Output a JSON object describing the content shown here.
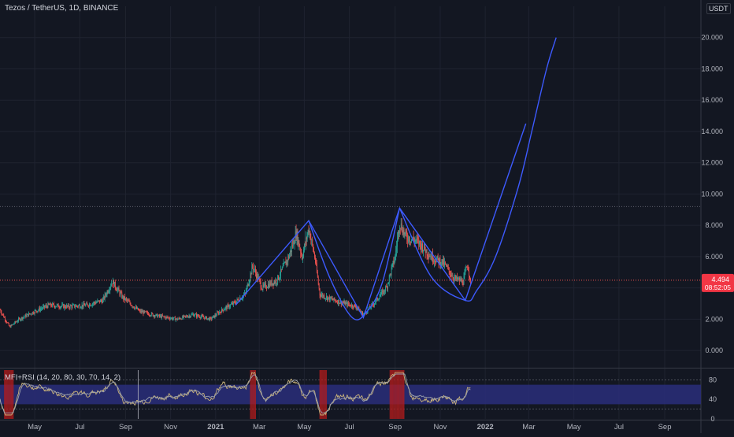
{
  "header": {
    "title": "Tezos / TetherUS, 1D, BINANCE",
    "currency": "USDT"
  },
  "indicator": {
    "label": "MFI+RSI (14, 20, 80, 30, 70, 14, 2)",
    "ticks": [
      "80",
      "40",
      "0"
    ]
  },
  "price_tag": {
    "value": "4.494",
    "countdown": "08:52:05",
    "color": "#f23645"
  },
  "colors": {
    "background": "#131722",
    "grid": "#1f2330",
    "up": "#26a69a",
    "down": "#ef5350",
    "pattern": "#3d5afe",
    "band": "#2a2e7a"
  },
  "chart_data": [
    {
      "type": "candlestick",
      "x_ticks": [
        "May",
        "Jul",
        "Sep",
        "Nov",
        "2021",
        "Mar",
        "May",
        "Jul",
        "Sep",
        "Nov",
        "2022",
        "Mar",
        "May",
        "Jul",
        "Sep"
      ],
      "y_ticks": [
        "20.000",
        "18.000",
        "16.000",
        "14.000",
        "12.000",
        "10.000",
        "8.000",
        "6.000",
        "4.000",
        "2.000",
        "0.000"
      ],
      "ylim": [
        -1.0,
        22.0
      ],
      "date_range": [
        "2020-03-15",
        "2022-10-20"
      ],
      "last_price": 4.494,
      "price_path": [
        [
          "2020-03-15",
          2.6
        ],
        [
          "2020-03-28",
          1.5
        ],
        [
          "2020-04-10",
          2.0
        ],
        [
          "2020-05-01",
          2.5
        ],
        [
          "2020-05-20",
          2.9
        ],
        [
          "2020-06-15",
          2.8
        ],
        [
          "2020-07-10",
          2.9
        ],
        [
          "2020-08-01",
          3.2
        ],
        [
          "2020-08-14",
          4.4
        ],
        [
          "2020-08-28",
          3.4
        ],
        [
          "2020-09-20",
          2.5
        ],
        [
          "2020-10-15",
          2.2
        ],
        [
          "2020-11-10",
          2.0
        ],
        [
          "2020-12-01",
          2.3
        ],
        [
          "2020-12-25",
          2.0
        ],
        [
          "2021-01-10",
          2.6
        ],
        [
          "2021-01-25",
          3.0
        ],
        [
          "2021-02-10",
          3.6
        ],
        [
          "2021-02-20",
          5.4
        ],
        [
          "2021-03-05",
          4.0
        ],
        [
          "2021-03-25",
          4.5
        ],
        [
          "2021-04-10",
          6.0
        ],
        [
          "2021-04-20",
          7.5
        ],
        [
          "2021-04-28",
          6.0
        ],
        [
          "2021-05-07",
          7.8
        ],
        [
          "2021-05-15",
          6.0
        ],
        [
          "2021-05-22",
          3.6
        ],
        [
          "2021-06-05",
          3.3
        ],
        [
          "2021-06-25",
          3.0
        ],
        [
          "2021-07-10",
          2.8
        ],
        [
          "2021-07-20",
          2.3
        ],
        [
          "2021-08-01",
          2.9
        ],
        [
          "2021-08-20",
          4.0
        ],
        [
          "2021-09-01",
          6.0
        ],
        [
          "2021-09-07",
          8.2
        ],
        [
          "2021-09-15",
          7.3
        ],
        [
          "2021-10-01",
          7.0
        ],
        [
          "2021-10-20",
          6.0
        ],
        [
          "2021-11-05",
          5.6
        ],
        [
          "2021-11-20",
          4.6
        ],
        [
          "2021-12-02",
          4.4
        ],
        [
          "2021-12-08",
          5.5
        ],
        [
          "2021-12-12",
          4.494
        ]
      ],
      "annotations": {
        "zigzag": [
          [
            "2021-01-28",
            2.9
          ],
          [
            "2021-05-07",
            8.3
          ],
          [
            "2021-07-20",
            2.1
          ],
          [
            "2021-09-07",
            9.1
          ],
          [
            "2021-12-05",
            3.2
          ],
          [
            "2022-02-25",
            14.5
          ]
        ],
        "rounded_bottom_1": [
          [
            "2021-05-07",
            8.3
          ],
          [
            "2021-06-05",
            4.6
          ],
          [
            "2021-07-05",
            2.1
          ],
          [
            "2021-07-25",
            2.5
          ],
          [
            "2021-08-15",
            4.4
          ],
          [
            "2021-09-07",
            9.1
          ]
        ],
        "rounded_bottom_2": [
          [
            "2021-09-07",
            9.1
          ],
          [
            "2021-10-20",
            4.7
          ],
          [
            "2021-12-05",
            3.2
          ],
          [
            "2021-12-20",
            3.8
          ],
          [
            "2022-01-15",
            6.0
          ],
          [
            "2022-02-15",
            10.5
          ],
          [
            "2022-03-05",
            14.0
          ],
          [
            "2022-03-25",
            18.0
          ],
          [
            "2022-04-07",
            20.0
          ]
        ],
        "horizontal_levels": [
          9.2,
          4.494
        ]
      }
    },
    {
      "type": "line",
      "name": "MFI+RSI (14, 20, 80, 30, 70, 14, 2)",
      "ylim": [
        0,
        100
      ],
      "y_ticks": [
        "80",
        "40",
        "0"
      ],
      "band": [
        30,
        70
      ]
    }
  ]
}
